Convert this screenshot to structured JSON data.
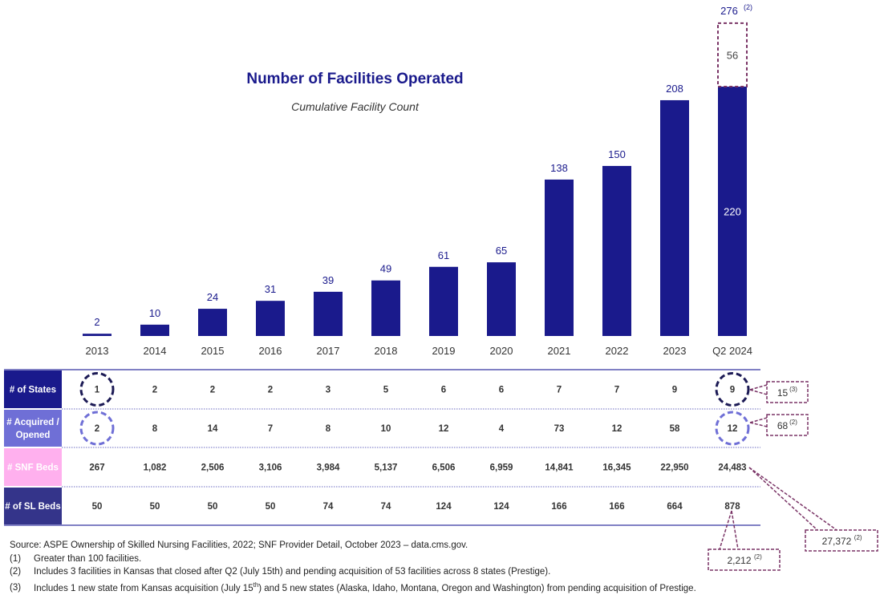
{
  "chart_data": {
    "type": "bar",
    "title": "Number of Facilities Operated",
    "subtitle": "Cumulative Facility Count",
    "categories": [
      "2013",
      "2014",
      "2015",
      "2016",
      "2017",
      "2018",
      "2019",
      "2020",
      "2021",
      "2022",
      "2023",
      "Q2 2024"
    ],
    "values": [
      2,
      10,
      24,
      31,
      39,
      49,
      61,
      65,
      138,
      150,
      208,
      220
    ],
    "pending": {
      "category": "Q2 2024",
      "value": 56,
      "total_label": "276",
      "total_note": "(2)"
    },
    "ylim": [
      0,
      280
    ],
    "grid": false,
    "colors": {
      "bar": "#1a1a8c",
      "pending_border": "#7a3466",
      "label": "#1a1a8c"
    }
  },
  "table": {
    "rows": [
      {
        "label": "# of States",
        "color": "#1a1a8c",
        "text_color": "#ffffff",
        "values": [
          "1",
          "2",
          "2",
          "2",
          "3",
          "5",
          "6",
          "6",
          "7",
          "7",
          "9",
          "9"
        ],
        "circled": [
          0,
          11
        ],
        "circle_color": "#1c1a55",
        "callout": {
          "value": "15",
          "note": "(3)"
        }
      },
      {
        "label": "# Acquired / Opened",
        "label_lines": [
          "# Acquired /",
          "Opened"
        ],
        "color": "#6f6fd6",
        "text_color": "#ffffff",
        "values": [
          "2",
          "8",
          "14",
          "7",
          "8",
          "10",
          "12",
          "4",
          "73",
          "12",
          "58",
          "12"
        ],
        "circled": [
          0,
          11
        ],
        "circle_color": "#6f6fd6",
        "callout": {
          "value": "68",
          "note": "(2)"
        }
      },
      {
        "label": "# SNF Beds",
        "color": "#ffb0ee",
        "text_color": "#ffffff",
        "values": [
          "267",
          "1,082",
          "2,506",
          "3,106",
          "3,984",
          "5,137",
          "6,506",
          "6,959",
          "14,841",
          "16,345",
          "22,950",
          "24,483"
        ],
        "callout": {
          "value": "27,372",
          "note": "(2)"
        }
      },
      {
        "label": "# of SL Beds",
        "color": "#34348a",
        "text_color": "#ffffff",
        "values": [
          "50",
          "50",
          "50",
          "50",
          "74",
          "74",
          "124",
          "124",
          "166",
          "166",
          "664",
          "878"
        ],
        "callout": {
          "value": "2,212",
          "note": "(2)"
        }
      }
    ]
  },
  "footnotes": {
    "source": "Source: ASPE Ownership of Skilled Nursing Facilities, 2022; SNF Provider Detail, October 2023 – data.cms.gov.",
    "items": [
      {
        "num": "(1)",
        "text": "Greater than 100 facilities."
      },
      {
        "num": "(2)",
        "text": "Includes 3 facilities in Kansas that closed after Q2 (July 15th) and pending acquisition of 53 facilities across 8 states (Prestige)."
      },
      {
        "num": "(3)",
        "text_before": "Includes 1 new state from Kansas acquisition (July 15",
        "sup": "th",
        "text_after": ") and 5 new states (Alaska, Idaho, Montana, Oregon and Washington) from pending acquisition of Prestige."
      }
    ]
  }
}
